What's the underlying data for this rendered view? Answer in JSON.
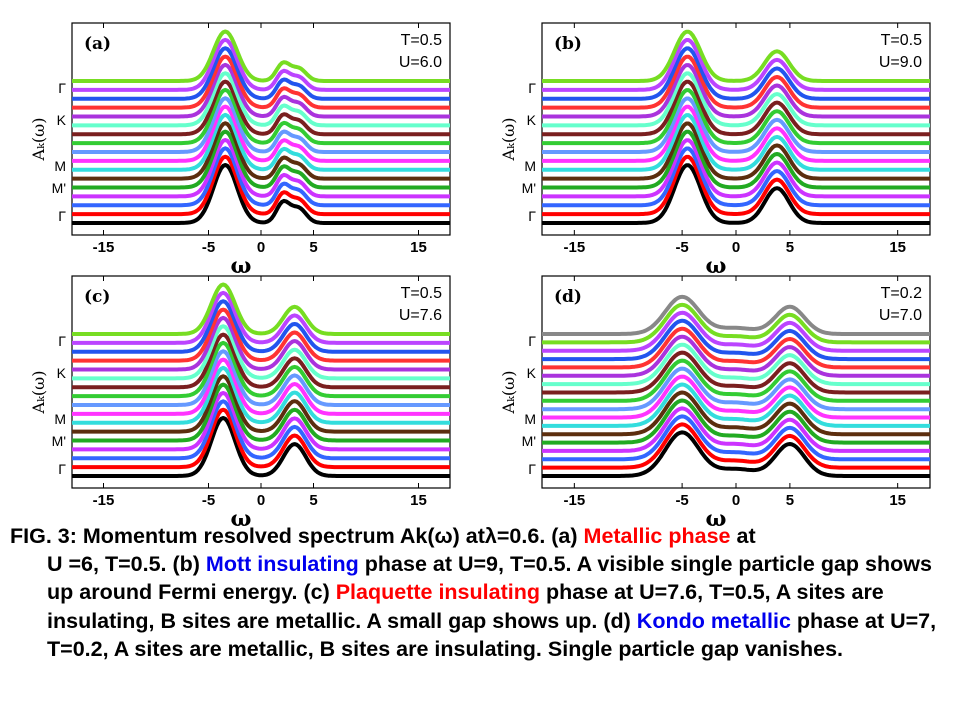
{
  "chart_data": [
    {
      "type": "line",
      "panel_label": "(a)",
      "annotation": [
        "T=0.5",
        "U=6.0"
      ],
      "xlabel": "ω",
      "ylabel": "Aₖ(ω)",
      "xticks": [
        "-15",
        "-5",
        "0",
        "5",
        "15"
      ],
      "xtick_values": [
        -15,
        -5,
        0,
        5,
        15
      ],
      "yticks": [
        "Γ",
        "M'",
        "M",
        "K",
        "Γ"
      ],
      "xlim": [
        -18,
        18
      ],
      "series": [
        {
          "values_peak": [
            -3.5,
            0.0,
            2.0
          ]
        }
      ],
      "curves": 17,
      "shape": {
        "p1": [
          -3.4,
          1.0,
          1.6
        ],
        "p2": [
          2.1,
          0.35,
          0.9
        ],
        "p3": [
          3.6,
          0.25,
          1.0
        ],
        "dip": 0.0
      }
    },
    {
      "type": "line",
      "panel_label": "(b)",
      "annotation": [
        "T=0.5",
        "U=9.0"
      ],
      "xlabel": "ω",
      "ylabel": "Aₖ(ω)",
      "xticks": [
        "-15",
        "-5",
        "0",
        "5",
        "15"
      ],
      "xtick_values": [
        -15,
        -5,
        0,
        5,
        15
      ],
      "yticks": [
        "Γ",
        "M'",
        "M",
        "K",
        "Γ"
      ],
      "xlim": [
        -18,
        18
      ],
      "curves": 17,
      "shape": {
        "p1": [
          -4.5,
          1.0,
          1.7
        ],
        "p2": [
          3.8,
          0.6,
          1.6
        ],
        "p3": [
          0,
          0,
          1
        ],
        "dip": 0.0
      }
    },
    {
      "type": "line",
      "panel_label": "(c)",
      "annotation": [
        "T=0.5",
        "U=7.6"
      ],
      "xlabel": "ω",
      "ylabel": "Aₖ(ω)",
      "xticks": [
        "-15",
        "-5",
        "0",
        "5",
        "15"
      ],
      "xtick_values": [
        -15,
        -5,
        0,
        5,
        15
      ],
      "yticks": [
        "Γ",
        "M'",
        "M",
        "K",
        "Γ"
      ],
      "xlim": [
        -18,
        18
      ],
      "curves": 17,
      "shape": {
        "p1": [
          -3.6,
          1.0,
          1.6
        ],
        "p2": [
          3.2,
          0.55,
          1.5
        ],
        "p3": [
          0,
          0,
          1
        ],
        "dip": 0.0
      }
    },
    {
      "type": "line",
      "panel_label": "(d)",
      "annotation": [
        "T=0.2",
        "U=7.0"
      ],
      "xlabel": "ω",
      "ylabel": "Aₖ(ω)",
      "xticks": [
        "-15",
        "-5",
        "0",
        "5",
        "15"
      ],
      "xtick_values": [
        -15,
        -5,
        0,
        5,
        15
      ],
      "yticks": [
        "Γ",
        "M'",
        "M",
        "K",
        "Γ"
      ],
      "xlim": [
        -18,
        18
      ],
      "curves": 18,
      "shape": {
        "p1": [
          -5.0,
          0.75,
          2.2
        ],
        "p2": [
          5.0,
          0.55,
          1.9
        ],
        "p3": [
          0,
          0.12,
          2.5
        ],
        "dip": 0.0
      }
    }
  ],
  "curve_colors": [
    "#000000",
    "#ff0000",
    "#3366ff",
    "#cc33ff",
    "#22aa22",
    "#5c2e0e",
    "#33dddd",
    "#ff33ff",
    "#6699ff",
    "#33cc33",
    "#7a1f1f",
    "#66ffcc",
    "#aa33dd",
    "#ff3333",
    "#2255ee",
    "#bb44ff",
    "#77dd22",
    "#888888"
  ],
  "caption": {
    "line1_pre": "FIG. 3: Momentum resolved spectrum Ak(ω) atλ=0.6. (a) ",
    "line1_hl": "Metallic phase",
    "line1_post": " at",
    "line2_pre": "U =6,  T=0.5. (b) ",
    "line2_hl": "Mott insulating",
    "line2_post": " phase at U=9, T=0.5. A visible single particle gap shows up around Fermi energy. (c) ",
    "line3_hl": "Plaquette insulating",
    "line3_post": " phase at U=7.6, T=0.5, A sites are insulating, B sites are metallic. A small gap shows up. (d) ",
    "line4_hl": "Kondo metallic",
    "line4_post": " phase at U=7, T=0.2, A sites are metallic, B sites are insulating. Single particle gap vanishes."
  }
}
